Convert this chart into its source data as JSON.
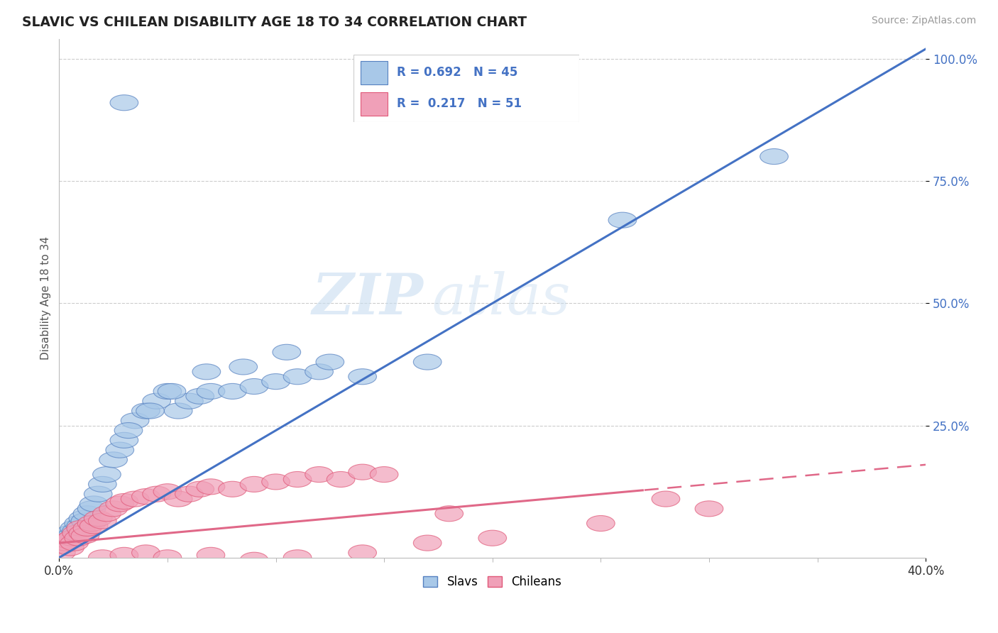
{
  "title": "SLAVIC VS CHILEAN DISABILITY AGE 18 TO 34 CORRELATION CHART",
  "source": "Source: ZipAtlas.com",
  "ylabel": "Disability Age 18 to 34",
  "x_min": 0.0,
  "x_max": 40.0,
  "y_min": -2.0,
  "y_max": 104.0,
  "yticks": [
    25,
    50,
    75,
    100
  ],
  "ytick_labels": [
    "25.0%",
    "50.0%",
    "75.0%",
    "100.0%"
  ],
  "slavs_color": "#a8c8e8",
  "slavs_edge_color": "#5580c0",
  "chileans_color": "#f0a0b8",
  "chileans_edge_color": "#e05878",
  "line_slavs_color": "#4472c4",
  "line_chileans_color": "#e06888",
  "background_color": "#ffffff",
  "grid_color": "#cccccc",
  "watermark_color": "#d0e4f4",
  "slavs_x": [
    0.2,
    0.3,
    0.4,
    0.5,
    0.6,
    0.7,
    0.8,
    0.9,
    1.0,
    1.1,
    1.2,
    1.3,
    1.5,
    1.6,
    1.8,
    2.0,
    2.2,
    2.5,
    2.8,
    3.0,
    3.5,
    4.0,
    4.5,
    5.0,
    5.5,
    6.0,
    6.5,
    7.0,
    8.0,
    9.0,
    10.0,
    11.0,
    12.0,
    3.2,
    4.2,
    5.2,
    6.8,
    8.5,
    10.5,
    12.5,
    14.0,
    17.0,
    26.0,
    33.0,
    3.0
  ],
  "slavs_y": [
    1.0,
    2.0,
    1.5,
    3.0,
    2.5,
    4.0,
    3.5,
    5.0,
    4.5,
    6.0,
    5.5,
    7.0,
    8.0,
    9.0,
    11.0,
    13.0,
    15.0,
    18.0,
    20.0,
    22.0,
    26.0,
    28.0,
    30.0,
    32.0,
    28.0,
    30.0,
    31.0,
    32.0,
    32.0,
    33.0,
    34.0,
    35.0,
    36.0,
    24.0,
    28.0,
    32.0,
    36.0,
    37.0,
    40.0,
    38.0,
    35.0,
    38.0,
    67.0,
    80.0,
    91.0
  ],
  "chileans_x": [
    0.1,
    0.2,
    0.3,
    0.4,
    0.5,
    0.6,
    0.7,
    0.8,
    0.9,
    1.0,
    1.1,
    1.2,
    1.3,
    1.5,
    1.6,
    1.8,
    2.0,
    2.2,
    2.5,
    2.8,
    3.0,
    3.5,
    4.0,
    4.5,
    5.0,
    5.5,
    6.0,
    6.5,
    7.0,
    8.0,
    9.0,
    10.0,
    11.0,
    12.0,
    13.0,
    14.0,
    15.0,
    2.0,
    3.0,
    4.0,
    5.0,
    7.0,
    9.0,
    11.0,
    14.0,
    17.0,
    20.0,
    25.0,
    30.0,
    18.0,
    28.0
  ],
  "chileans_y": [
    -1.0,
    0.5,
    1.0,
    1.5,
    0.0,
    2.0,
    1.0,
    3.0,
    2.0,
    4.0,
    3.0,
    2.5,
    4.0,
    5.0,
    4.5,
    6.0,
    5.5,
    7.0,
    8.0,
    9.0,
    9.5,
    10.0,
    10.5,
    11.0,
    11.5,
    10.0,
    11.0,
    12.0,
    12.5,
    12.0,
    13.0,
    13.5,
    14.0,
    15.0,
    14.0,
    15.5,
    15.0,
    -2.0,
    -1.5,
    -1.0,
    -2.0,
    -1.5,
    -2.5,
    -2.0,
    -1.0,
    1.0,
    2.0,
    5.0,
    8.0,
    7.0,
    10.0
  ],
  "slavs_line_x0": 0.0,
  "slavs_line_y0": -2.0,
  "slavs_line_x1": 40.0,
  "slavs_line_y1": 102.0,
  "chileans_line_x0": 0.0,
  "chileans_line_y0": 1.0,
  "chileans_line_x1": 40.0,
  "chileans_line_y1": 17.0,
  "chileans_solid_end": 27.0
}
